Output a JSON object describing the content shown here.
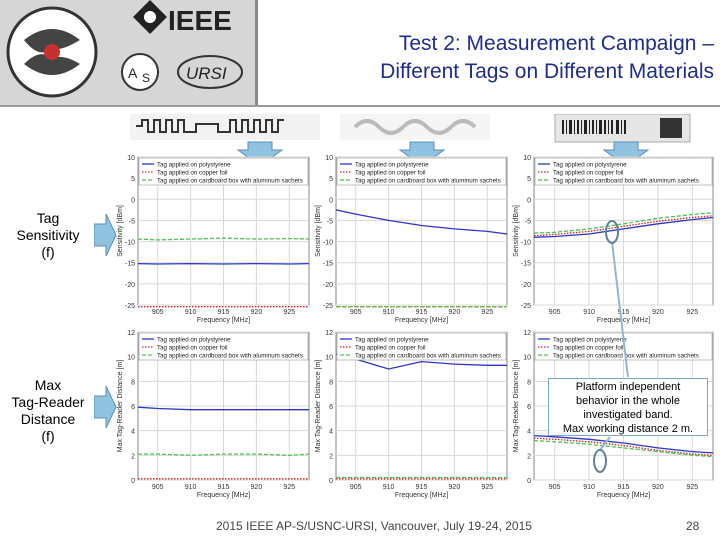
{
  "logo": {
    "name": "IEEE",
    "sub_logo": "URSI"
  },
  "title": {
    "line1": "Test 2: Measurement Campaign –",
    "line2": "Different Tags on Different Materials"
  },
  "row_labels": {
    "sensitivity": [
      "Tag",
      "Sensitivity",
      "(f)"
    ],
    "distance": [
      "Max",
      "Tag-Reader",
      "Distance",
      "(f)"
    ]
  },
  "callout": {
    "lines": [
      "Platform independent",
      "behavior in the whole",
      "investigated band.",
      "Max working distance 2 m."
    ]
  },
  "footer": {
    "conference": "2015 IEEE AP-S/USNC-URSI, Vancouver, July 19-24, 2015",
    "page": "28"
  },
  "colors": {
    "polystyrene": "#2b35c8",
    "copper": "#d02020",
    "cardboard": "#4fc24f",
    "title": "#1f2d8a",
    "callout_border": "#7aa8c8"
  },
  "chart_data": [
    {
      "type": "line",
      "xlabel": "Frequency [MHz]",
      "ylabel": "Sensitivity [dBm]",
      "x": [
        902,
        905,
        910,
        915,
        920,
        925,
        928
      ],
      "xticks": [
        905,
        910,
        915,
        920,
        925
      ],
      "ylim": [
        -25,
        10
      ],
      "yticks": [
        10,
        5,
        0,
        -5,
        -10,
        -15,
        -20,
        -25
      ],
      "series": [
        {
          "name": "Tag applied on polystyrene",
          "color": "#2b35c8",
          "style": "solid",
          "values": [
            -15.2,
            -15.3,
            -15.2,
            -15.3,
            -15.2,
            -15.3,
            -15.2
          ]
        },
        {
          "name": "Tag applied on copper foil",
          "color": "#d02020",
          "style": "dotted",
          "values": [
            -25.5,
            -25.5,
            -25.5,
            -25.5,
            -25.5,
            -25.5,
            -25.5
          ]
        },
        {
          "name": "Tag applied on cardboard box with aluminum sachets",
          "color": "#4fc24f",
          "style": "dashed",
          "values": [
            -9.4,
            -9.6,
            -9.4,
            -9.2,
            -9.4,
            -9.3,
            -9.4
          ]
        }
      ]
    },
    {
      "type": "line",
      "xlabel": "Frequency [MHz]",
      "ylabel": "Sensitivity [dBm]",
      "x": [
        902,
        905,
        910,
        915,
        920,
        925,
        928
      ],
      "xticks": [
        905,
        910,
        915,
        920,
        925
      ],
      "ylim": [
        -25,
        10
      ],
      "yticks": [
        10,
        5,
        0,
        -5,
        -10,
        -15,
        -20,
        -25
      ],
      "series": [
        {
          "name": "Tag applied on polystyrene",
          "color": "#2b35c8",
          "style": "solid",
          "values": [
            -2.5,
            -3.5,
            -5.0,
            -6.2,
            -7.0,
            -7.6,
            -8.2
          ]
        },
        {
          "name": "Tag applied on copper foil",
          "color": "#d02020",
          "style": "dotted",
          "values": [
            -25.5,
            -25.5,
            -25.5,
            -25.5,
            -25.5,
            -25.5,
            -25.5
          ]
        },
        {
          "name": "Tag applied on cardboard box with aluminum sachets",
          "color": "#4fc24f",
          "style": "dashed",
          "values": [
            -25.5,
            -25.5,
            -25.5,
            -25.5,
            -25.5,
            -25.5,
            -25.5
          ]
        }
      ]
    },
    {
      "type": "line",
      "xlabel": "Frequency [MHz]",
      "ylabel": "Sensitivity [dBm]",
      "x": [
        902,
        905,
        910,
        915,
        920,
        925,
        928
      ],
      "xticks": [
        905,
        910,
        915,
        920,
        925
      ],
      "ylim": [
        -25,
        10
      ],
      "yticks": [
        10,
        5,
        0,
        -5,
        -10,
        -15,
        -20,
        -25
      ],
      "series": [
        {
          "name": "Tag applied on polystyrene",
          "color": "#2b35c8",
          "style": "solid",
          "values": [
            -9.0,
            -8.8,
            -8.2,
            -7.0,
            -5.8,
            -4.8,
            -4.3
          ]
        },
        {
          "name": "Tag applied on copper foil",
          "color": "#d02020",
          "style": "dotted",
          "values": [
            -8.6,
            -8.3,
            -7.6,
            -6.4,
            -5.2,
            -4.3,
            -3.9
          ]
        },
        {
          "name": "Tag applied on cardboard box with aluminum sachets",
          "color": "#4fc24f",
          "style": "dashed",
          "values": [
            -8.0,
            -7.8,
            -7.0,
            -5.8,
            -4.5,
            -3.6,
            -3.2
          ]
        }
      ]
    },
    {
      "type": "line",
      "xlabel": "Frequency [MHz]",
      "ylabel": "Max Tag-Reader Distance [m]",
      "x": [
        902,
        905,
        910,
        915,
        920,
        925,
        928
      ],
      "xticks": [
        905,
        910,
        915,
        920,
        925
      ],
      "ylim": [
        0,
        12
      ],
      "yticks": [
        12,
        10,
        8,
        6,
        4,
        2,
        0
      ],
      "series": [
        {
          "name": "Tag applied on polystyrene",
          "color": "#2b35c8",
          "style": "solid",
          "values": [
            5.9,
            5.8,
            5.7,
            5.7,
            5.7,
            5.7,
            5.7
          ]
        },
        {
          "name": "Tag applied on copper foil",
          "color": "#d02020",
          "style": "dotted",
          "values": [
            0.1,
            0.1,
            0.1,
            0.1,
            0.1,
            0.1,
            0.1
          ]
        },
        {
          "name": "Tag applied on cardboard box with aluminum sachets",
          "color": "#4fc24f",
          "style": "dashed",
          "values": [
            2.1,
            2.1,
            2.0,
            2.1,
            2.1,
            2.0,
            2.1
          ]
        }
      ]
    },
    {
      "type": "line",
      "xlabel": "Frequency [MHz]",
      "ylabel": "Max Tag-Reader Distance [m]",
      "x": [
        902,
        905,
        910,
        915,
        920,
        925,
        928
      ],
      "xticks": [
        905,
        910,
        915,
        920,
        925
      ],
      "ylim": [
        0,
        12
      ],
      "yticks": [
        12,
        10,
        8,
        6,
        4,
        2,
        0
      ],
      "series": [
        {
          "name": "Tag applied on polystyrene",
          "color": "#2b35c8",
          "style": "solid",
          "values": [
            10.2,
            9.8,
            9.0,
            9.6,
            9.4,
            9.3,
            9.3
          ]
        },
        {
          "name": "Tag applied on copper foil",
          "color": "#d02020",
          "style": "dotted",
          "values": [
            0.1,
            0.1,
            0.1,
            0.1,
            0.1,
            0.1,
            0.1
          ]
        },
        {
          "name": "Tag applied on cardboard box with aluminum sachets",
          "color": "#4fc24f",
          "style": "dashed",
          "values": [
            0.2,
            0.2,
            0.2,
            0.2,
            0.2,
            0.2,
            0.2
          ]
        }
      ]
    },
    {
      "type": "line",
      "xlabel": "Frequency [MHz]",
      "ylabel": "Max Tag-Reader Distance [m]",
      "x": [
        902,
        905,
        910,
        915,
        920,
        925,
        928
      ],
      "xticks": [
        905,
        910,
        915,
        920,
        925
      ],
      "ylim": [
        0,
        12
      ],
      "yticks": [
        12,
        10,
        8,
        6,
        4,
        2,
        0
      ],
      "series": [
        {
          "name": "Tag applied on polystyrene",
          "color": "#2b35c8",
          "style": "solid",
          "values": [
            3.6,
            3.5,
            3.3,
            3.0,
            2.6,
            2.3,
            2.2
          ]
        },
        {
          "name": "Tag applied on copper foil",
          "color": "#d02020",
          "style": "dotted",
          "values": [
            3.4,
            3.3,
            3.1,
            2.8,
            2.4,
            2.1,
            2.0
          ]
        },
        {
          "name": "Tag applied on cardboard box with aluminum sachets",
          "color": "#4fc24f",
          "style": "dashed",
          "values": [
            3.2,
            3.1,
            2.9,
            2.6,
            2.3,
            2.0,
            1.9
          ]
        }
      ]
    }
  ]
}
